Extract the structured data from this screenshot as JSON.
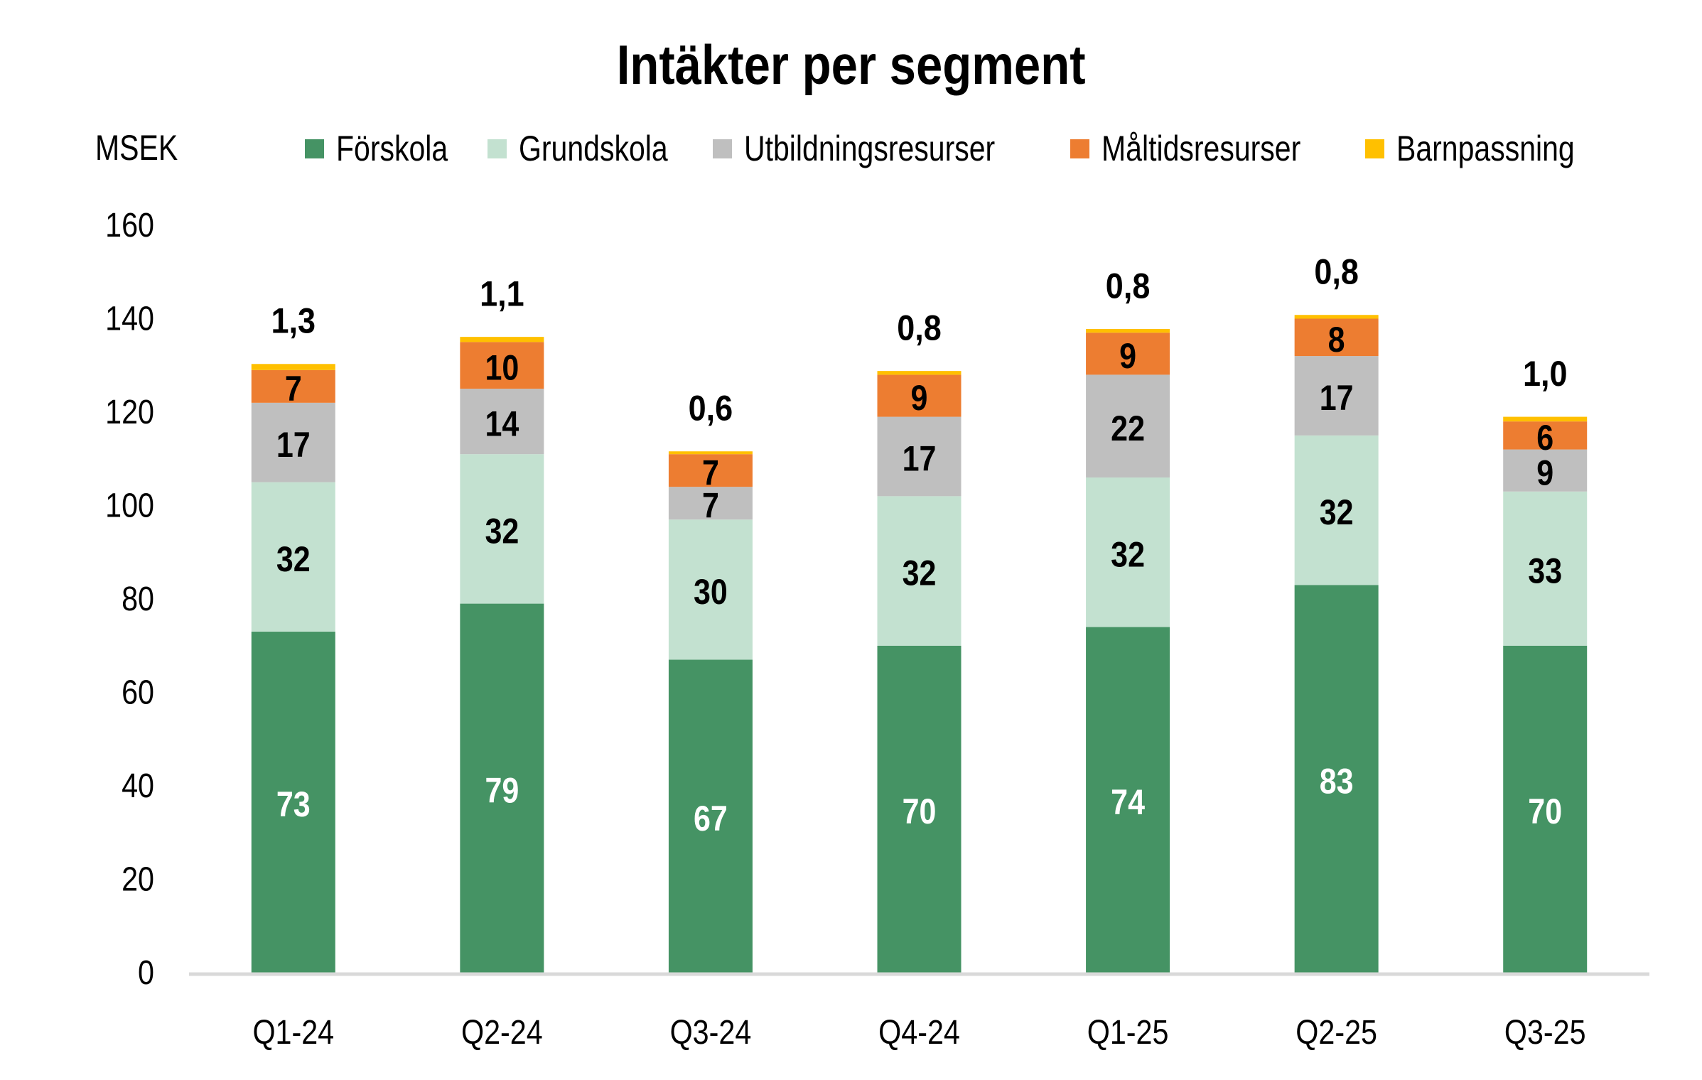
{
  "chart_data": {
    "type": "bar",
    "stacked": true,
    "title": "Intäkter per segment",
    "ylabel": "MSEK",
    "xlabel": "",
    "ylim": [
      0,
      160
    ],
    "yticks": [
      "0",
      "20",
      "40",
      "60",
      "80",
      "100",
      "120",
      "140",
      "160"
    ],
    "ytick_values": [
      0,
      20,
      40,
      60,
      80,
      100,
      120,
      140,
      160
    ],
    "grid": false,
    "legend_position": "top",
    "categories": [
      "Q1-24",
      "Q2-24",
      "Q3-24",
      "Q4-24",
      "Q1-25",
      "Q2-25",
      "Q3-25"
    ],
    "series": [
      {
        "name": "Förskola",
        "color": "#459364",
        "label_color": "#ffffff",
        "values": [
          73,
          79,
          67,
          70,
          74,
          83,
          70
        ],
        "labels": [
          "73",
          "79",
          "67",
          "70",
          "74",
          "83",
          "70"
        ]
      },
      {
        "name": "Grundskola",
        "color": "#C3E1D0",
        "label_color": "#000000",
        "values": [
          32,
          32,
          30,
          32,
          32,
          32,
          33
        ],
        "labels": [
          "32",
          "32",
          "30",
          "32",
          "32",
          "32",
          "33"
        ]
      },
      {
        "name": "Utbildningsresurser",
        "color": "#BFBFBF",
        "label_color": "#000000",
        "values": [
          17,
          14,
          7,
          17,
          22,
          17,
          9
        ],
        "labels": [
          "17",
          "14",
          "7",
          "17",
          "22",
          "17",
          "9"
        ]
      },
      {
        "name": "Måltidsresurser",
        "color": "#ED7D31",
        "label_color": "#000000",
        "values": [
          7,
          10,
          7,
          9,
          9,
          8,
          6
        ],
        "labels": [
          "7",
          "10",
          "7",
          "9",
          "9",
          "8",
          "6"
        ]
      },
      {
        "name": "Barnpassning",
        "color": "#FFC000",
        "label_color": "#000000",
        "values": [
          1.3,
          1.1,
          0.6,
          0.8,
          0.8,
          0.8,
          1.0
        ],
        "labels": [
          "1,3",
          "1,1",
          "0,6",
          "0,8",
          "0,8",
          "0,8",
          "1,0"
        ]
      }
    ]
  }
}
